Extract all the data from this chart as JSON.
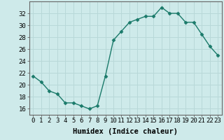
{
  "x": [
    0,
    1,
    2,
    3,
    4,
    5,
    6,
    7,
    8,
    9,
    10,
    11,
    12,
    13,
    14,
    15,
    16,
    17,
    18,
    19,
    20,
    21,
    22,
    23
  ],
  "y": [
    21.5,
    20.5,
    19.0,
    18.5,
    17.0,
    17.0,
    16.5,
    16.0,
    16.5,
    21.5,
    27.5,
    29.0,
    30.5,
    31.0,
    31.5,
    31.5,
    33.0,
    32.0,
    32.0,
    30.5,
    30.5,
    28.5,
    26.5,
    25.0
  ],
  "line_color": "#1a7a6a",
  "marker": "D",
  "marker_size": 2.5,
  "bg_color": "#ceeaea",
  "grid_color": "#b8d8d8",
  "xlabel": "Humidex (Indice chaleur)",
  "ylabel": "",
  "title": "",
  "xlim": [
    -0.5,
    23.5
  ],
  "ylim": [
    15,
    34
  ],
  "yticks": [
    16,
    18,
    20,
    22,
    24,
    26,
    28,
    30,
    32
  ],
  "xticks": [
    0,
    1,
    2,
    3,
    4,
    5,
    6,
    7,
    8,
    9,
    10,
    11,
    12,
    13,
    14,
    15,
    16,
    17,
    18,
    19,
    20,
    21,
    22,
    23
  ],
  "xtick_labels": [
    "0",
    "1",
    "2",
    "3",
    "4",
    "5",
    "6",
    "7",
    "8",
    "9",
    "10",
    "11",
    "12",
    "13",
    "14",
    "15",
    "16",
    "17",
    "18",
    "19",
    "20",
    "21",
    "22",
    "23"
  ],
  "font_size": 6.5,
  "xlabel_fontsize": 7.5
}
